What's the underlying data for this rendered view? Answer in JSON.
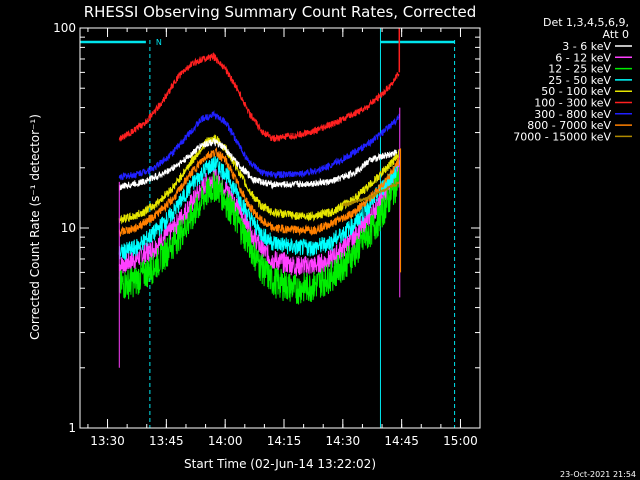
{
  "chart_data": {
    "type": "line",
    "title": "RHESSI Observing Summary Count Rates, Corrected",
    "xlabel": "Start Time (02-Jun-14 13:22:02)",
    "ylabel": "Corrected Count Rate (s⁻¹ detector⁻¹)",
    "y_scale": "log",
    "ylim": [
      1,
      100
    ],
    "xlim_minutes": [
      13.383,
      15.083
    ],
    "xticks": [
      {
        "label": "13:30",
        "x": 13.5
      },
      {
        "label": "13:45",
        "x": 13.75
      },
      {
        "label": "14:00",
        "x": 14.0
      },
      {
        "label": "14:15",
        "x": 14.25
      },
      {
        "label": "14:30",
        "x": 14.5
      },
      {
        "label": "14:45",
        "x": 14.75
      },
      {
        "label": "15:00",
        "x": 15.0
      }
    ],
    "yticks": [
      {
        "label": "1",
        "y": 1
      },
      {
        "label": "10",
        "y": 10
      },
      {
        "label": "100",
        "y": 100
      }
    ],
    "legend": {
      "placement": "right",
      "header_line1": "Det 1,3,4,5,6,9,",
      "header_line2": "Att 0"
    },
    "series": [
      {
        "name": "3 - 6 keV",
        "color": "#ffffff",
        "noise": 0.04,
        "x": [
          13.55,
          13.65,
          13.75,
          13.83,
          13.9,
          13.95,
          14.0,
          14.05,
          14.12,
          14.2,
          14.3,
          14.45,
          14.55,
          14.62,
          14.68,
          14.73
        ],
        "y": [
          16,
          17,
          19,
          22,
          26,
          27,
          25,
          21,
          17.5,
          16.5,
          16.5,
          17,
          19,
          22,
          23,
          24
        ]
      },
      {
        "name": "6 - 12 keV",
        "color": "#ff40ff",
        "noise": 0.12,
        "x": [
          13.55,
          13.62,
          13.7,
          13.78,
          13.85,
          13.92,
          13.96,
          14.0,
          14.05,
          14.1,
          14.15,
          14.2,
          14.3,
          14.38,
          14.45,
          14.55,
          14.65,
          14.72,
          14.74
        ],
        "y": [
          6.5,
          7,
          8,
          10,
          13,
          17,
          18,
          16,
          13,
          10,
          8,
          7,
          6.5,
          6.5,
          7,
          9,
          13,
          18,
          20
        ]
      },
      {
        "name": "12 - 25 keV",
        "color": "#00ee00",
        "noise": 0.18,
        "x": [
          13.55,
          13.62,
          13.7,
          13.78,
          13.85,
          13.92,
          13.96,
          14.0,
          14.05,
          14.1,
          14.15,
          14.2,
          14.3,
          14.38,
          14.45,
          14.55,
          14.65,
          14.72,
          14.74
        ],
        "y": [
          5.2,
          5.5,
          6.5,
          8.5,
          11,
          15,
          16.5,
          14,
          11,
          8.5,
          6.5,
          5.5,
          5,
          5.2,
          5.8,
          7.5,
          11,
          16,
          18
        ]
      },
      {
        "name": "25 - 50 keV",
        "color": "#00ffff",
        "noise": 0.1,
        "x": [
          13.55,
          13.62,
          13.7,
          13.78,
          13.85,
          13.92,
          13.96,
          14.0,
          14.05,
          14.1,
          14.15,
          14.2,
          14.3,
          14.38,
          14.45,
          14.55,
          14.65,
          14.72,
          14.74
        ],
        "y": [
          7.5,
          8,
          9.5,
          12,
          16,
          20,
          21,
          19,
          15,
          11.5,
          9.5,
          8.5,
          8,
          8,
          8.5,
          10.5,
          15,
          19,
          21
        ]
      },
      {
        "name": "50 - 100 keV",
        "color": "#e6e600",
        "noise": 0.05,
        "x": [
          13.55,
          13.62,
          13.7,
          13.78,
          13.85,
          13.92,
          13.96,
          14.0,
          14.05,
          14.1,
          14.15,
          14.2,
          14.3,
          14.38,
          14.45,
          14.55,
          14.65,
          14.72,
          14.74
        ],
        "y": [
          11,
          11.5,
          13,
          16,
          21,
          27,
          28,
          25,
          20,
          15.5,
          13,
          12,
          11.5,
          11.5,
          12,
          14,
          18,
          22,
          24
        ]
      },
      {
        "name": "100 - 300 keV",
        "color": "#ff2020",
        "noise": 0.04,
        "x": [
          13.55,
          13.6,
          13.65,
          13.7,
          13.75,
          13.8,
          13.85,
          13.9,
          13.95,
          14.0,
          14.05,
          14.1,
          14.15,
          14.2,
          14.3,
          14.4,
          14.5,
          14.6,
          14.67,
          14.72,
          14.74
        ],
        "y": [
          28,
          30,
          33,
          38,
          46,
          57,
          65,
          70,
          72,
          63,
          50,
          38,
          31,
          28,
          29,
          31,
          35,
          40,
          47,
          55,
          60
        ]
      },
      {
        "name": "300 - 800 keV",
        "color": "#2020ff",
        "noise": 0.04,
        "x": [
          13.55,
          13.62,
          13.7,
          13.78,
          13.85,
          13.9,
          13.95,
          14.0,
          14.05,
          14.1,
          14.15,
          14.2,
          14.3,
          14.4,
          14.5,
          14.6,
          14.67,
          14.72,
          14.74
        ],
        "y": [
          18,
          18.5,
          20,
          24,
          30,
          35,
          37,
          34,
          27,
          21.5,
          19,
          18.5,
          18.5,
          19.5,
          22,
          26,
          30,
          34,
          36
        ]
      },
      {
        "name": "800 - 7000 keV",
        "color": "#ff8000",
        "noise": 0.05,
        "x": [
          13.55,
          13.62,
          13.7,
          13.78,
          13.85,
          13.92,
          13.96,
          14.0,
          14.05,
          14.1,
          14.15,
          14.2,
          14.3,
          14.38,
          14.45,
          14.55,
          14.65,
          14.72,
          14.74
        ],
        "y": [
          9.5,
          10,
          11.5,
          14,
          18.5,
          23,
          24,
          22,
          17,
          13,
          11,
          10,
          9.8,
          9.8,
          10.5,
          12,
          15.5,
          20,
          22
        ]
      },
      {
        "name": "7000 - 15000 keV",
        "color": "#b08a00",
        "noise": 0.02,
        "x": [
          14.5,
          14.6,
          14.7,
          14.745
        ],
        "y": [
          13,
          14,
          16,
          17
        ]
      }
    ],
    "annotations": {
      "marker_label": "N",
      "timestamp": "23-Oct-2021 21:54"
    }
  }
}
